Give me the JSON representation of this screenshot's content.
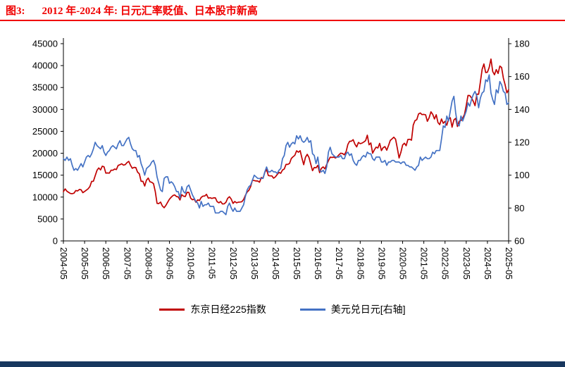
{
  "header": {
    "figure_label": "图3:",
    "title_text": "2012 年-2024 年: 日元汇率贬值、日本股市新高",
    "accent_color": "#f00000"
  },
  "footer": {
    "bar_color": "#17375e"
  },
  "chart_data": {
    "type": "line",
    "title": "图3: 2012 年-2024 年: 日元汇率贬值、日本股市新高",
    "x_frequency": "monthly",
    "x_start": "2004-05",
    "x_end": "2025-05",
    "grid": false,
    "legend_position": "bottom",
    "x_tick_labels": [
      "2004-05",
      "2005-05",
      "2006-05",
      "2007-05",
      "2008-05",
      "2009-05",
      "2010-05",
      "2011-05",
      "2012-05",
      "2013-05",
      "2014-05",
      "2015-05",
      "2016-05",
      "2017-05",
      "2018-05",
      "2019-05",
      "2020-05",
      "2021-05",
      "2022-05",
      "2023-05",
      "2024-05",
      "2025-05"
    ],
    "left_axis": {
      "min": 0,
      "max": 45000,
      "step": 5000,
      "ticks": [
        "0",
        "5000",
        "10000",
        "15000",
        "20000",
        "25000",
        "30000",
        "35000",
        "40000",
        "45000"
      ]
    },
    "right_axis": {
      "min": 60,
      "max": 180,
      "step": 20,
      "ticks": [
        "60",
        "80",
        "100",
        "120",
        "140",
        "160",
        "180"
      ]
    },
    "series": [
      {
        "name": "东京日经225指数",
        "axis": "left",
        "color": "#c00000",
        "values": [
          11236,
          11858,
          11325,
          11081,
          10823,
          10771,
          10899,
          11488,
          11387,
          11740,
          11668,
          11008,
          11276,
          11584,
          11899,
          12413,
          13574,
          13606,
          14872,
          16111,
          16649,
          16205,
          17059,
          16906,
          15467,
          15505,
          15456,
          16140,
          16127,
          16399,
          16274,
          17225,
          17383,
          17604,
          17287,
          17400,
          17875,
          18138,
          17248,
          16569,
          16785,
          16737,
          15680,
          15307,
          13592,
          13603,
          12525,
          13849,
          14338,
          13481,
          13376,
          13072,
          11259,
          8576,
          8512,
          8859,
          7994,
          7568,
          8109,
          8828,
          9522,
          9958,
          10356,
          10492,
          10133,
          10034,
          9345,
          10546,
          10198,
          10126,
          11089,
          11057,
          9768,
          9382,
          9537,
          8824,
          9369,
          9202,
          9937,
          10228,
          10237,
          10624,
          9755,
          9849,
          9693,
          9816,
          9833,
          8955,
          8700,
          8988,
          8434,
          8455,
          8802,
          9723,
          10083,
          9520,
          8542,
          9006,
          8695,
          8839,
          8870,
          8928,
          9446,
          10395,
          11138,
          11559,
          12397,
          13860,
          13774,
          13677,
          13668,
          13388,
          14455,
          14327,
          15661,
          16291,
          14914,
          14841,
          14827,
          14304,
          14632,
          15162,
          15620,
          15424,
          16173,
          16413,
          17459,
          17450,
          17674,
          18797,
          19206,
          19520,
          20563,
          20235,
          20585,
          18890,
          17388,
          19083,
          19747,
          19033,
          17518,
          16026,
          16758,
          16666,
          17234,
          15575,
          16569,
          16887,
          16449,
          17425,
          18308,
          19114,
          19041,
          19118,
          18909,
          19196,
          19650,
          20033,
          19925,
          19646,
          20356,
          22011,
          22724,
          22764,
          23098,
          22068,
          21454,
          22467,
          22201,
          22304,
          22553,
          22865,
          24120,
          21920,
          22351,
          20014,
          20773,
          21385,
          21205,
          22258,
          20601,
          21275,
          21521,
          20704,
          21755,
          22927,
          23293,
          23656,
          23205,
          21142,
          18917,
          20193,
          21877,
          22288,
          21710,
          23139,
          23185,
          22977,
          26433,
          27444,
          27663,
          28966,
          29178,
          28812,
          28860,
          28791,
          27283,
          28089,
          29452,
          28892,
          27821,
          28791,
          27001,
          26526,
          27821,
          26847,
          27279,
          26393,
          27801,
          28091,
          25937,
          27587,
          27968,
          26094,
          27327,
          27445,
          28041,
          28856,
          30887,
          33189,
          33172,
          32619,
          31857,
          30858,
          33486,
          33464,
          36286,
          39166,
          40369,
          38405,
          38487,
          39583,
          41500,
          38647,
          37919,
          39081,
          38208,
          39894,
          39572,
          37156,
          35617,
          33780,
          34500
        ]
      },
      {
        "name": "美元兑日元[右轴]",
        "axis": "right",
        "color": "#4472c4",
        "values": [
          110,
          109,
          111,
          109,
          110,
          106,
          103,
          104,
          103,
          105,
          107,
          105,
          108,
          111,
          112,
          111,
          113,
          116,
          120,
          118,
          117,
          116,
          118,
          114,
          112,
          114,
          115,
          117,
          118,
          117,
          116,
          119,
          121,
          118,
          118,
          120,
          122,
          123,
          119,
          116,
          115,
          115,
          111,
          112,
          107,
          104,
          100,
          104,
          105,
          106,
          108,
          109,
          106,
          99,
          95,
          91,
          90,
          98,
          99,
          99,
          95,
          96,
          95,
          93,
          90,
          90,
          86,
          93,
          90,
          89,
          93,
          94,
          91,
          88,
          86,
          84,
          83,
          80,
          84,
          81,
          82,
          82,
          83,
          81,
          81,
          81,
          77,
          77,
          77,
          78,
          78,
          77,
          76,
          81,
          83,
          80,
          78,
          80,
          78,
          78,
          78,
          80,
          82,
          87,
          91,
          93,
          94,
          97,
          100,
          99,
          98,
          98,
          98,
          98,
          102,
          105,
          102,
          102,
          103,
          102,
          102,
          101,
          103,
          104,
          110,
          112,
          118,
          120,
          117,
          119,
          120,
          119,
          124,
          122,
          124,
          121,
          120,
          121,
          123,
          120,
          121,
          113,
          112,
          107,
          111,
          103,
          102,
          103,
          101,
          105,
          114,
          117,
          113,
          112,
          111,
          111,
          111,
          112,
          110,
          110,
          113,
          114,
          112,
          113,
          109,
          107,
          106,
          109,
          109,
          111,
          112,
          111,
          114,
          113,
          113,
          110,
          109,
          111,
          111,
          111,
          108,
          108,
          109,
          106,
          108,
          108,
          109,
          109,
          108,
          108,
          108,
          107,
          108,
          108,
          106,
          106,
          105,
          105,
          104,
          103,
          105,
          106,
          111,
          109,
          110,
          111,
          110,
          110,
          111,
          114,
          113,
          115,
          115,
          115,
          122,
          130,
          129,
          136,
          133,
          139,
          145,
          148,
          138,
          131,
          130,
          136,
          133,
          136,
          139,
          144,
          142,
          146,
          149,
          151,
          148,
          141,
          147,
          150,
          151,
          158,
          157,
          161,
          150,
          146,
          143,
          152,
          150,
          157,
          155,
          151,
          150,
          143,
          144
        ]
      }
    ]
  }
}
